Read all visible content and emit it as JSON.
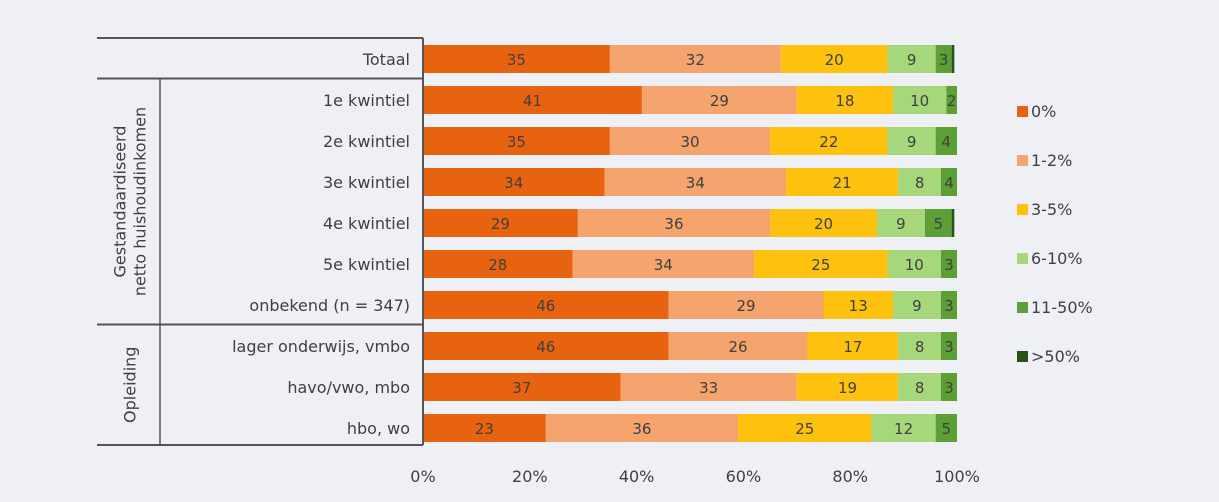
{
  "chart_data": {
    "type": "bar",
    "orientation": "horizontal",
    "stacked": true,
    "categories": [
      "Totaal",
      "1e kwintiel",
      "2e kwintiel",
      "3e kwintiel",
      "4e kwintiel",
      "5e kwintiel",
      "onbekend (n = 347)",
      "lager onderwijs, vmbo",
      "havo/vwo, mbo",
      "hbo, wo"
    ],
    "groups": [
      {
        "label_lines": [
          "Gestandaardiseerd",
          "netto huishoudinkomen"
        ],
        "categories": [
          "1e kwintiel",
          "2e kwintiel",
          "3e kwintiel",
          "4e kwintiel",
          "5e kwintiel",
          "onbekend (n = 347)"
        ]
      },
      {
        "label_lines": [
          "Opleiding"
        ],
        "categories": [
          "lager onderwijs, vmbo",
          "havo/vwo, mbo",
          "hbo, wo"
        ]
      }
    ],
    "series": [
      {
        "name": "0%",
        "color": "#e8630f",
        "values": [
          35,
          41,
          35,
          34,
          29,
          28,
          46,
          46,
          37,
          23
        ]
      },
      {
        "name": "1-2%",
        "color": "#f4a46c",
        "values": [
          32,
          29,
          30,
          34,
          36,
          34,
          29,
          26,
          33,
          36
        ]
      },
      {
        "name": "3-5%",
        "color": "#fdc10e",
        "values": [
          20,
          18,
          22,
          21,
          20,
          25,
          13,
          17,
          19,
          25
        ]
      },
      {
        "name": "6-10%",
        "color": "#a7d77b",
        "values": [
          9,
          10,
          9,
          8,
          9,
          10,
          9,
          8,
          8,
          12
        ]
      },
      {
        "name": "11-50%",
        "color": "#5c9f34",
        "values": [
          3,
          2,
          4,
          4,
          5,
          3,
          3,
          3,
          3,
          5
        ]
      },
      {
        "name": ">50%",
        "color": "#27521a",
        "values": [
          0.5,
          0.5,
          0.3,
          0.3,
          0.5,
          0.3,
          0.3,
          0.5,
          0.3,
          0.3
        ]
      }
    ],
    "value_labels_shown_for": [
      "0%",
      "1-2%",
      "3-5%",
      "6-10%",
      "11-50%"
    ],
    "xlim": [
      0,
      100
    ],
    "x_ticks": [
      "0%",
      "20%",
      "40%",
      "60%",
      "80%",
      "100%"
    ],
    "grid": false,
    "legend_position": "right"
  }
}
